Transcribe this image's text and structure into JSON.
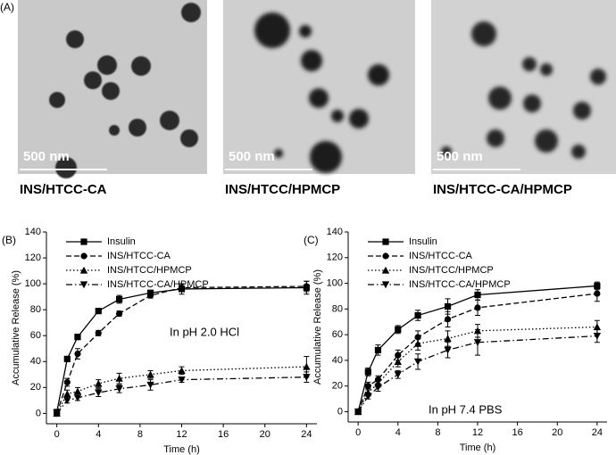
{
  "panel_a": {
    "label": "(A)",
    "images": [
      {
        "scale_bar": "500 nm",
        "caption": "INS/HTCC-CA"
      },
      {
        "scale_bar": "500 nm",
        "caption": "INS/HTCC/HPMCP"
      },
      {
        "scale_bar": "500 nm",
        "caption": "INS/HTCC-CA/HPMCP"
      }
    ]
  },
  "chart_data": [
    {
      "type": "line",
      "panel_label": "(B)",
      "annotation": "In pH 2.0 HCl",
      "x_label": "Time (h)",
      "y_label": "Accumulative Release (%)",
      "x": [
        0,
        1,
        2,
        4,
        6,
        9,
        12,
        24
      ],
      "xlim": [
        -1,
        25
      ],
      "xticks": [
        0,
        4,
        8,
        12,
        16,
        20,
        24
      ],
      "ylim": [
        -8,
        140
      ],
      "yticks": [
        0,
        20,
        40,
        60,
        80,
        100,
        120,
        140
      ],
      "legend": "upper left",
      "series": [
        {
          "name": "Insulin",
          "color": "#000000",
          "marker": "square",
          "dash": "solid",
          "values": [
            1,
            42,
            59,
            79,
            88,
            93,
            96,
            97
          ],
          "errors": [
            1,
            2,
            2,
            2,
            3,
            2,
            4,
            5
          ]
        },
        {
          "name": "INS/HTCC-CA",
          "color": "#000000",
          "marker": "circle",
          "dash": "dashed",
          "values": [
            0,
            24,
            46,
            62,
            77,
            91,
            97,
            98
          ],
          "errors": [
            1,
            3,
            4,
            2,
            2,
            2,
            3,
            4
          ]
        },
        {
          "name": "INS/HTCC/HPMCP",
          "color": "#000000",
          "marker": "triangle-up",
          "dash": "dotted",
          "values": [
            0,
            15,
            17,
            23,
            27,
            30,
            33,
            36
          ],
          "errors": [
            1,
            3,
            3,
            3,
            4,
            3,
            3,
            8
          ]
        },
        {
          "name": "INS/HTCC-CA/HPMCP",
          "color": "#000000",
          "marker": "triangle-down",
          "dash": "dashdot",
          "values": [
            0,
            10,
            12,
            16,
            19,
            22,
            26,
            28
          ],
          "errors": [
            1,
            2,
            2,
            3,
            3,
            4,
            2,
            4
          ]
        }
      ]
    },
    {
      "type": "line",
      "panel_label": "(C)",
      "annotation": "In pH 7.4 PBS",
      "x_label": "Time (h)",
      "y_label": "Accumulative Release (%)",
      "x": [
        0,
        1,
        2,
        4,
        6,
        9,
        12,
        24
      ],
      "xlim": [
        -1,
        25
      ],
      "xticks": [
        0,
        4,
        8,
        12,
        16,
        20,
        24
      ],
      "ylim": [
        -8,
        140
      ],
      "yticks": [
        0,
        20,
        40,
        60,
        80,
        100,
        120,
        140
      ],
      "legend": "upper left",
      "series": [
        {
          "name": "Insulin",
          "color": "#000000",
          "marker": "square",
          "dash": "solid",
          "values": [
            0,
            31,
            48,
            64,
            75,
            82,
            91,
            98
          ],
          "errors": [
            1,
            3,
            4,
            3,
            4,
            6,
            4,
            3
          ]
        },
        {
          "name": "INS/HTCC-CA",
          "color": "#000000",
          "marker": "circle",
          "dash": "dashed",
          "values": [
            0,
            20,
            25,
            44,
            58,
            72,
            81,
            92
          ],
          "errors": [
            1,
            3,
            3,
            4,
            5,
            6,
            6,
            6
          ]
        },
        {
          "name": "INS/HTCC/HPMCP",
          "color": "#000000",
          "marker": "triangle-up",
          "dash": "dotted",
          "values": [
            0,
            15,
            22,
            39,
            53,
            57,
            63,
            66
          ],
          "errors": [
            1,
            3,
            3,
            4,
            5,
            6,
            5,
            5
          ]
        },
        {
          "name": "INS/HTCC-CA/HPMCP",
          "color": "#000000",
          "marker": "triangle-down",
          "dash": "dashdot",
          "values": [
            0,
            12,
            19,
            29,
            39,
            48,
            54,
            59
          ],
          "errors": [
            1,
            2,
            3,
            3,
            6,
            6,
            10,
            5
          ]
        }
      ]
    }
  ]
}
